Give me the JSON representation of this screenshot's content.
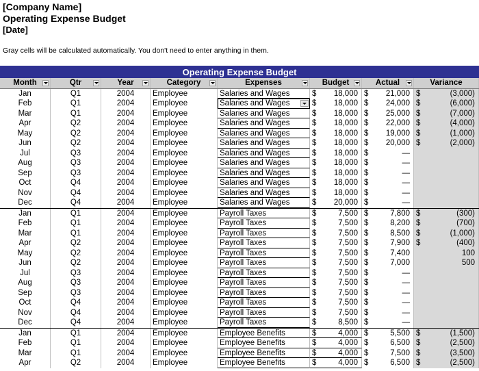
{
  "header": {
    "company": "[Company Name]",
    "title": "Operating Expense Budget",
    "date": "[Date]"
  },
  "note": "Gray cells will be calculated automatically. You don't  need to enter anything in them.",
  "table": {
    "title": "Operating Expense Budget",
    "columns": [
      "Month",
      "Qtr",
      "Year",
      "Category",
      "Expenses",
      "Budget",
      "Actual",
      "Variance"
    ],
    "currency_symbol": "$",
    "rows": [
      {
        "m": "Jan",
        "q": "Q1",
        "y": "2004",
        "cat": "Employee",
        "exp": "Salaries and Wages",
        "b": "18,000",
        "a": "21,000",
        "v": "(3,000)"
      },
      {
        "m": "Feb",
        "q": "Q1",
        "y": "2004",
        "cat": "Employee",
        "exp": "Salaries and Wages",
        "b": "18,000",
        "a": "24,000",
        "v": "(6,000)"
      },
      {
        "m": "Mar",
        "q": "Q1",
        "y": "2004",
        "cat": "Employee",
        "exp": "Salaries and Wages",
        "b": "18,000",
        "a": "25,000",
        "v": "(7,000)"
      },
      {
        "m": "Apr",
        "q": "Q2",
        "y": "2004",
        "cat": "Employee",
        "exp": "Salaries and Wages",
        "b": "18,000",
        "a": "22,000",
        "v": "(4,000)"
      },
      {
        "m": "May",
        "q": "Q2",
        "y": "2004",
        "cat": "Employee",
        "exp": "Salaries and Wages",
        "b": "18,000",
        "a": "19,000",
        "v": "(1,000)"
      },
      {
        "m": "Jun",
        "q": "Q2",
        "y": "2004",
        "cat": "Employee",
        "exp": "Salaries and Wages",
        "b": "18,000",
        "a": "20,000",
        "v": "(2,000)"
      },
      {
        "m": "Jul",
        "q": "Q3",
        "y": "2004",
        "cat": "Employee",
        "exp": "Salaries and Wages",
        "b": "18,000",
        "a": "—",
        "v": ""
      },
      {
        "m": "Aug",
        "q": "Q3",
        "y": "2004",
        "cat": "Employee",
        "exp": "Salaries and Wages",
        "b": "18,000",
        "a": "—",
        "v": ""
      },
      {
        "m": "Sep",
        "q": "Q3",
        "y": "2004",
        "cat": "Employee",
        "exp": "Salaries and Wages",
        "b": "18,000",
        "a": "—",
        "v": ""
      },
      {
        "m": "Oct",
        "q": "Q4",
        "y": "2004",
        "cat": "Employee",
        "exp": "Salaries and Wages",
        "b": "18,000",
        "a": "—",
        "v": ""
      },
      {
        "m": "Nov",
        "q": "Q4",
        "y": "2004",
        "cat": "Employee",
        "exp": "Salaries and Wages",
        "b": "18,000",
        "a": "—",
        "v": ""
      },
      {
        "m": "Dec",
        "q": "Q4",
        "y": "2004",
        "cat": "Employee",
        "exp": "Salaries and Wages",
        "b": "20,000",
        "a": "—",
        "v": ""
      },
      {
        "m": "Jan",
        "q": "Q1",
        "y": "2004",
        "cat": "Employee",
        "exp": "Payroll Taxes",
        "b": "7,500",
        "a": "7,800",
        "v": "(300)"
      },
      {
        "m": "Feb",
        "q": "Q1",
        "y": "2004",
        "cat": "Employee",
        "exp": "Payroll Taxes",
        "b": "7,500",
        "a": "8,200",
        "v": "(700)"
      },
      {
        "m": "Mar",
        "q": "Q1",
        "y": "2004",
        "cat": "Employee",
        "exp": "Payroll Taxes",
        "b": "7,500",
        "a": "8,500",
        "v": "(1,000)"
      },
      {
        "m": "Apr",
        "q": "Q2",
        "y": "2004",
        "cat": "Employee",
        "exp": "Payroll Taxes",
        "b": "7,500",
        "a": "7,900",
        "v": "(400)"
      },
      {
        "m": "May",
        "q": "Q2",
        "y": "2004",
        "cat": "Employee",
        "exp": "Payroll Taxes",
        "b": "7,500",
        "a": "7,400",
        "v": "100"
      },
      {
        "m": "Jun",
        "q": "Q2",
        "y": "2004",
        "cat": "Employee",
        "exp": "Payroll Taxes",
        "b": "7,500",
        "a": "7,000",
        "v": "500"
      },
      {
        "m": "Jul",
        "q": "Q3",
        "y": "2004",
        "cat": "Employee",
        "exp": "Payroll Taxes",
        "b": "7,500",
        "a": "—",
        "v": ""
      },
      {
        "m": "Aug",
        "q": "Q3",
        "y": "2004",
        "cat": "Employee",
        "exp": "Payroll Taxes",
        "b": "7,500",
        "a": "—",
        "v": ""
      },
      {
        "m": "Sep",
        "q": "Q3",
        "y": "2004",
        "cat": "Employee",
        "exp": "Payroll Taxes",
        "b": "7,500",
        "a": "—",
        "v": ""
      },
      {
        "m": "Oct",
        "q": "Q4",
        "y": "2004",
        "cat": "Employee",
        "exp": "Payroll Taxes",
        "b": "7,500",
        "a": "—",
        "v": ""
      },
      {
        "m": "Nov",
        "q": "Q4",
        "y": "2004",
        "cat": "Employee",
        "exp": "Payroll Taxes",
        "b": "7,500",
        "a": "—",
        "v": ""
      },
      {
        "m": "Dec",
        "q": "Q4",
        "y": "2004",
        "cat": "Employee",
        "exp": "Payroll Taxes",
        "b": "8,500",
        "a": "—",
        "v": ""
      },
      {
        "m": "Jan",
        "q": "Q1",
        "y": "2004",
        "cat": "Employee",
        "exp": "Employee Benefits",
        "b": "4,000",
        "a": "5,500",
        "v": "(1,500)"
      },
      {
        "m": "Feb",
        "q": "Q1",
        "y": "2004",
        "cat": "Employee",
        "exp": "Employee Benefits",
        "b": "4,000",
        "a": "6,500",
        "v": "(2,500)"
      },
      {
        "m": "Mar",
        "q": "Q1",
        "y": "2004",
        "cat": "Employee",
        "exp": "Employee Benefits",
        "b": "4,000",
        "a": "7,500",
        "v": "(3,500)"
      },
      {
        "m": "Apr",
        "q": "Q2",
        "y": "2004",
        "cat": "Employee",
        "exp": "Employee Benefits",
        "b": "4,000",
        "a": "6,500",
        "v": "(2,500)"
      }
    ]
  },
  "colors": {
    "banner": "#2e3192",
    "header_row": "#cfcfcf",
    "gray_cell": "#d9d9d9"
  }
}
